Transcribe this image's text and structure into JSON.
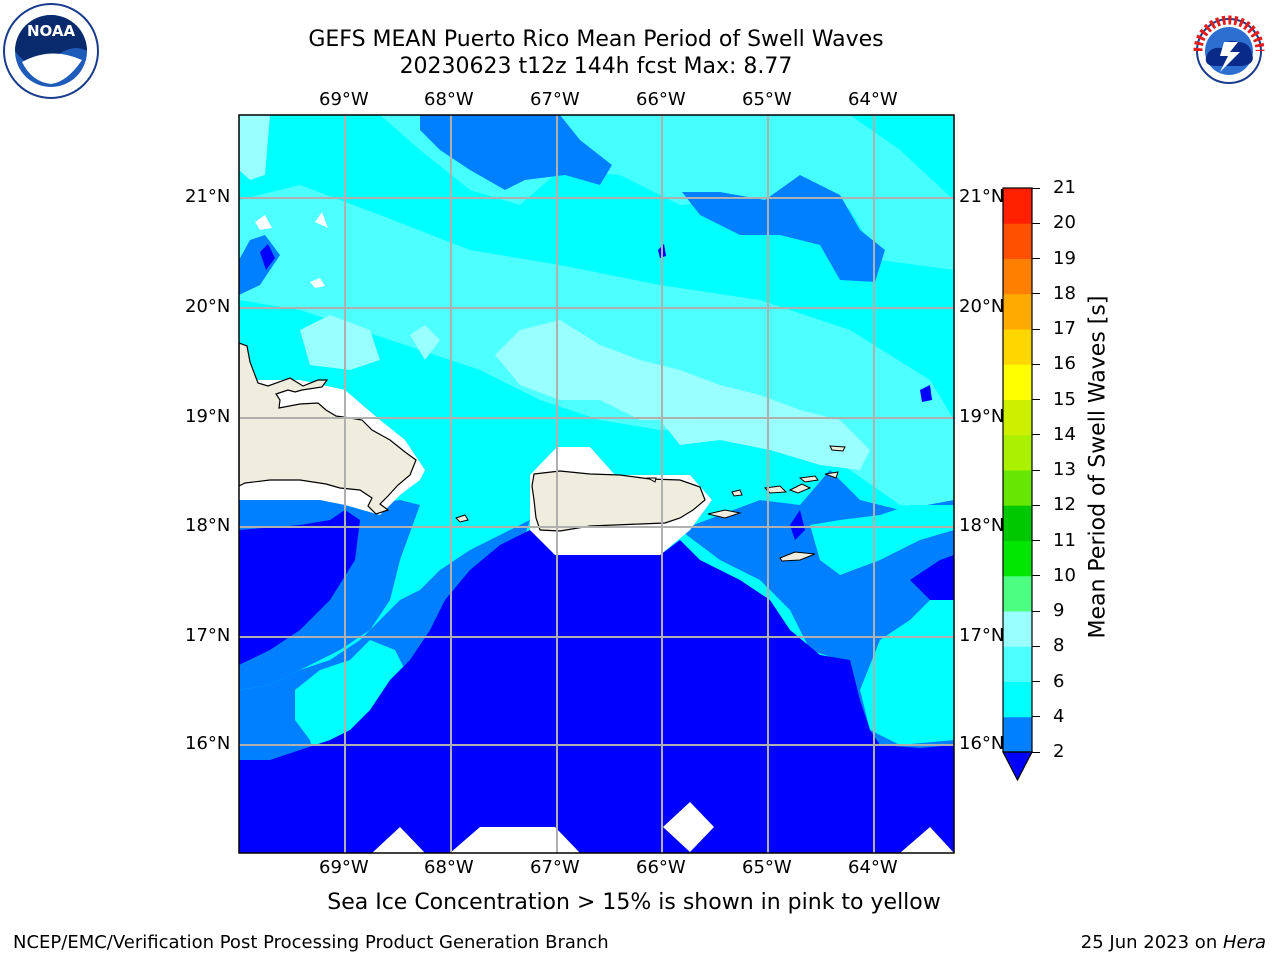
{
  "title": {
    "line1": "GEFS MEAN Puerto Rico Mean Period of Swell Waves",
    "line2": "20230623 t12z 144h fcst   Max: 8.77"
  },
  "map": {
    "lon_labels": [
      "69°W",
      "68°W",
      "67°W",
      "66°W",
      "65°W",
      "64°W"
    ],
    "lat_labels": [
      "21°N",
      "20°N",
      "19°N",
      "18°N",
      "17°N",
      "16°N"
    ],
    "land_color": "#efedde",
    "grid_color": "#b0b0b0"
  },
  "colorbar": {
    "title": "Mean Period of Swell Waves [s]",
    "tick_labels": [
      "2",
      "4",
      "6",
      "8",
      "9",
      "10",
      "11",
      "12",
      "13",
      "14",
      "15",
      "16",
      "17",
      "18",
      "19",
      "20",
      "21"
    ],
    "colors": [
      "#0000ff",
      "#0080ff",
      "#00ffff",
      "#4dffff",
      "#99ffff",
      "#4dff80",
      "#00e600",
      "#00c800",
      "#66e600",
      "#aaf000",
      "#ccf000",
      "#ffff00",
      "#ffd700",
      "#ffaa00",
      "#ff8000",
      "#ff5000",
      "#ff2000",
      "#ff0000"
    ]
  },
  "note": "Sea Ice Concentration > 15% is shown in pink to yellow",
  "footer": {
    "credit": "NCEP/EMC/Verification Post Processing Product Generation Branch",
    "date": "25 Jun 2023 on ",
    "machine": "Hera"
  },
  "logos": {
    "left": "noaa-logo",
    "left_text": "NOAA",
    "right": "nws-logo",
    "right_text": "NATIONAL WEATHER SERVICE"
  }
}
